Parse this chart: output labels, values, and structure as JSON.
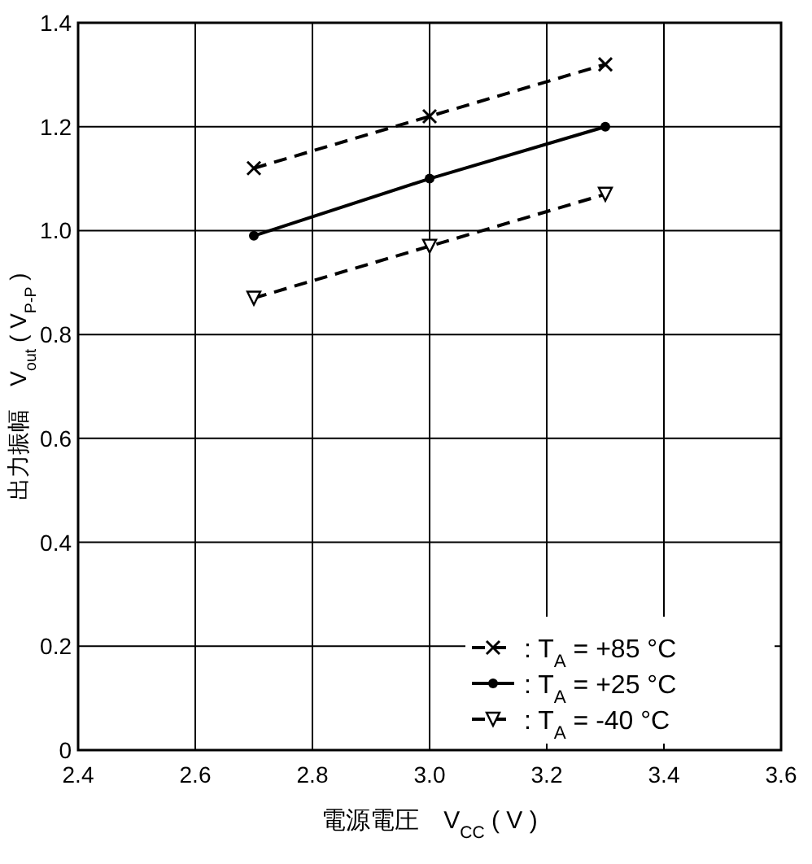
{
  "chart_data": {
    "type": "line",
    "xlabel": "電源電圧　V$_{CC}$ ( V )",
    "ylabel": "出力振幅　V$_{out}$ ( V$_{P-P}$ )",
    "xlim": [
      2.4,
      3.6
    ],
    "xticks": [
      2.4,
      2.6,
      2.8,
      {
        "value": 3.0,
        "label": "3.0"
      },
      3.2,
      3.4,
      3.6
    ],
    "ylim": [
      0,
      1.4
    ],
    "yticks": [
      0,
      0.2,
      0.4,
      0.6,
      0.8,
      {
        "value": 1.0,
        "label": "1.0"
      },
      1.2,
      1.4
    ],
    "grid": true,
    "legend": "bottom right",
    "series": [
      {
        "name": ": T$_{A}$ = +85 °C",
        "color": "#000000",
        "x": [
          2.7,
          3.0,
          3.3
        ],
        "values": [
          1.12,
          1.22,
          1.32
        ],
        "marker": "cross",
        "line_style": "dashed"
      },
      {
        "name": ": T$_{A}$ = +25 °C",
        "color": "#000000",
        "x": [
          2.7,
          3.0,
          3.3
        ],
        "values": [
          0.99,
          1.1,
          1.2
        ],
        "marker": "circle",
        "line_style": "solid"
      },
      {
        "name": ": T$_{A}$ = -40 °C",
        "color": "#000000",
        "x": [
          2.7,
          3.0,
          3.3
        ],
        "values": [
          0.87,
          0.97,
          1.07
        ],
        "marker": "triangle",
        "line_style": "dashed"
      }
    ]
  }
}
